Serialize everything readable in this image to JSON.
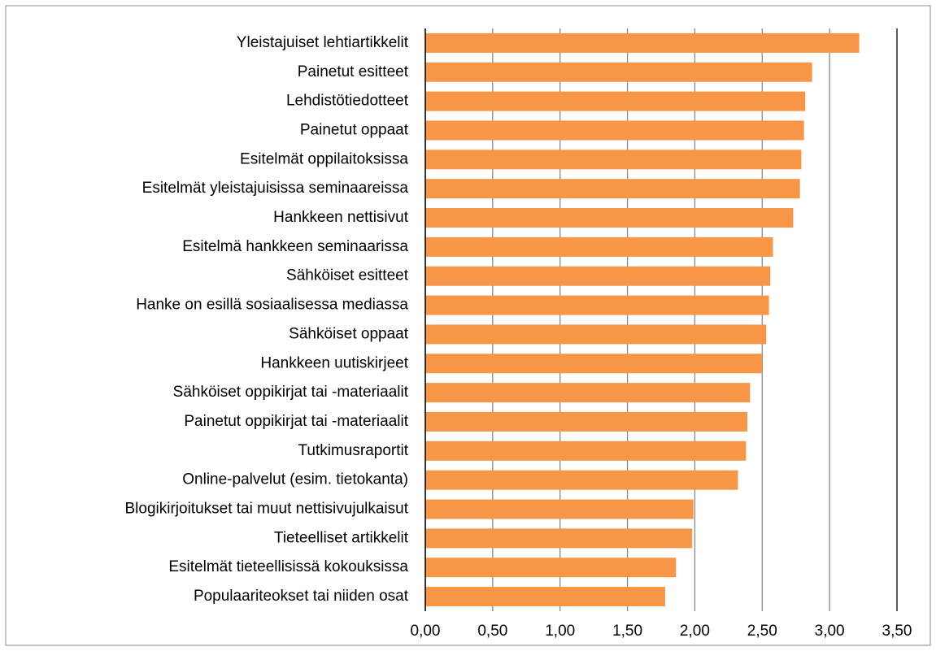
{
  "chart_data": {
    "type": "barh",
    "categories": [
      "Yleistajuiset lehtiartikkelit",
      "Painetut esitteet",
      "Lehdistötiedotteet",
      "Painetut oppaat",
      "Esitelmät oppilaitoksissa",
      "Esitelmät yleistajuisissa seminaareissa",
      "Hankkeen nettisivut",
      "Esitelmä hankkeen seminaarissa",
      "Sähköiset esitteet",
      "Hanke on esillä sosiaalisessa mediassa",
      "Sähköiset oppaat",
      "Hankkeen uutiskirjeet",
      "Sähköiset oppikirjat tai -materiaalit",
      "Painetut oppikirjat tai -materiaalit",
      "Tutkimusraportit",
      "Online-palvelut (esim. tietokanta)",
      "Blogikirjoitukset tai muut nettisivujulkaisut",
      "Tieteelliset artikkelit",
      "Esitelmät tieteellisissä kokouksissa",
      "Populaariteokset tai niiden osat"
    ],
    "values": [
      3.22,
      2.87,
      2.82,
      2.81,
      2.79,
      2.78,
      2.73,
      2.58,
      2.56,
      2.55,
      2.53,
      2.5,
      2.41,
      2.39,
      2.38,
      2.32,
      1.99,
      1.98,
      1.86,
      1.78
    ],
    "color": "#f79646",
    "xlim": [
      0,
      3.5
    ],
    "xticks": [
      {
        "value": 0,
        "label": "0,00"
      },
      {
        "value": 0.5,
        "label": "0,50"
      },
      {
        "value": 1,
        "label": "1,00"
      },
      {
        "value": 1.5,
        "label": "1,50"
      },
      {
        "value": 2,
        "label": "2,00"
      },
      {
        "value": 2.5,
        "label": "2,50"
      },
      {
        "value": 3,
        "label": "3,00"
      },
      {
        "value": 3.5,
        "label": "3,50"
      }
    ],
    "grid": true
  }
}
